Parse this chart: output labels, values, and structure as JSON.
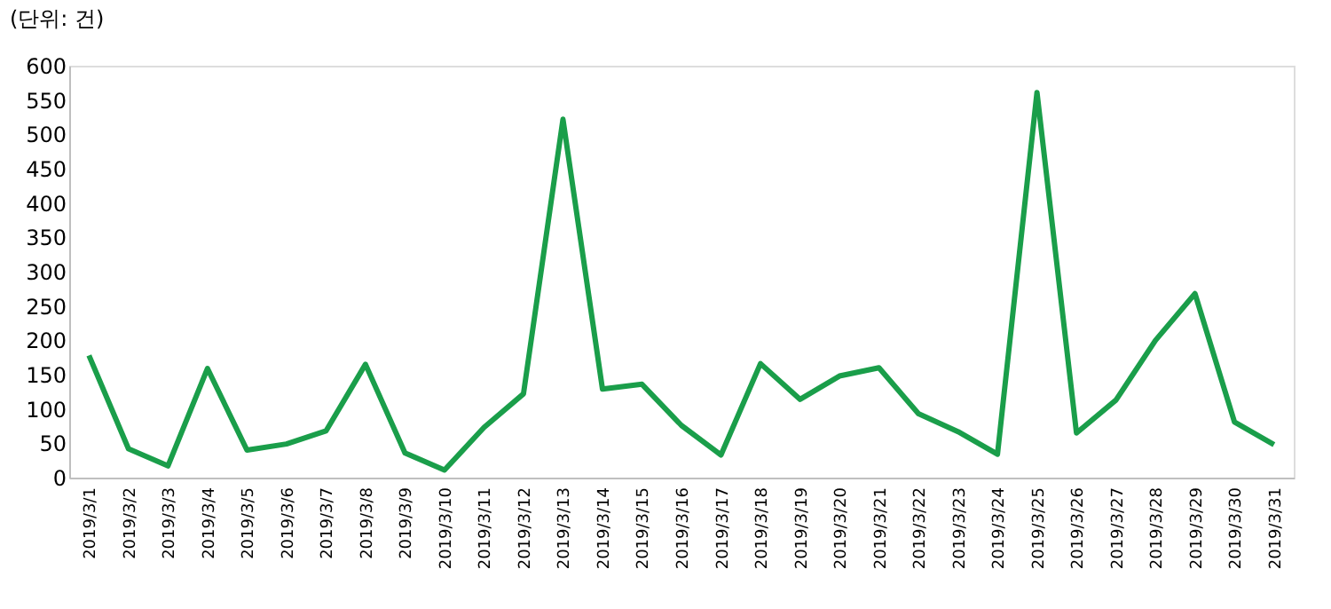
{
  "chart_data": {
    "type": "line",
    "ylabel": "(단위: 건)",
    "categories": [
      "2019/3/1",
      "2019/3/2",
      "2019/3/3",
      "2019/3/4",
      "2019/3/5",
      "2019/3/6",
      "2019/3/7",
      "2019/3/8",
      "2019/3/9",
      "2019/3/10",
      "2019/3/11",
      "2019/3/12",
      "2019/3/13",
      "2019/3/14",
      "2019/3/15",
      "2019/3/16",
      "2019/3/17",
      "2019/3/18",
      "2019/3/19",
      "2019/3/20",
      "2019/3/21",
      "2019/3/22",
      "2019/3/23",
      "2019/3/24",
      "2019/3/25",
      "2019/3/26",
      "2019/3/27",
      "2019/3/28",
      "2019/3/29",
      "2019/3/30",
      "2019/3/31"
    ],
    "series": [
      {
        "color": "#1a9e4a",
        "values": [
          178,
          42,
          17,
          159,
          40,
          49,
          68,
          165,
          36,
          11,
          73,
          122,
          522,
          129,
          136,
          76,
          33,
          166,
          114,
          148,
          160,
          93,
          67,
          34,
          561,
          65,
          113,
          200,
          268,
          81,
          48
        ]
      }
    ],
    "ylim": [
      0,
      600
    ],
    "yticks": [
      0,
      50,
      100,
      150,
      200,
      250,
      300,
      350,
      400,
      450,
      500,
      550,
      600
    ],
    "grid": false,
    "legend": false,
    "marker": "none",
    "line_style": "solid"
  }
}
